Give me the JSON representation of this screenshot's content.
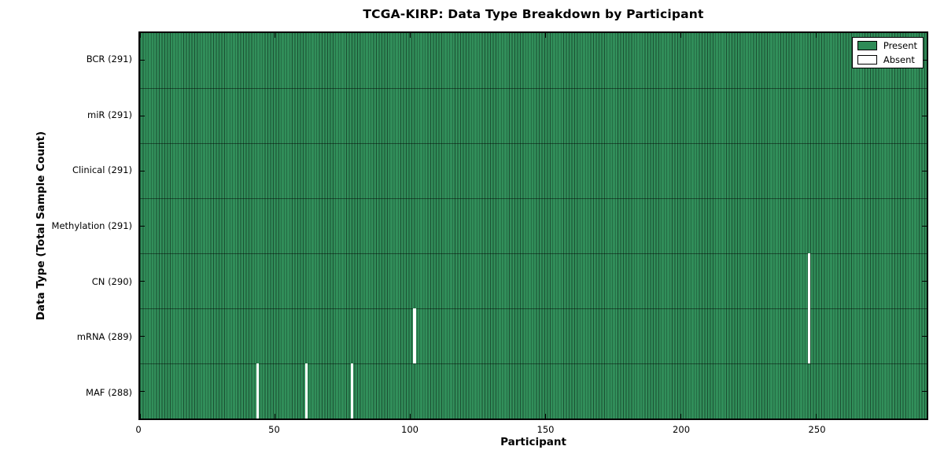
{
  "chart_data": {
    "type": "heatmap",
    "title": "TCGA-KIRP: Data Type Breakdown by Participant",
    "xlabel": "Participant",
    "ylabel": "Data Type (Total Sample Count)",
    "n_participants": 291,
    "xlim": [
      0,
      291
    ],
    "x_ticks": [
      0,
      50,
      100,
      150,
      200,
      250
    ],
    "grid": false,
    "rows": [
      {
        "label": "BCR",
        "total": 291,
        "absent_participants": []
      },
      {
        "label": "miR",
        "total": 291,
        "absent_participants": []
      },
      {
        "label": "Clinical",
        "total": 291,
        "absent_participants": []
      },
      {
        "label": "Methylation",
        "total": 291,
        "absent_participants": []
      },
      {
        "label": "CN",
        "total": 290,
        "absent_participants": [
          247
        ]
      },
      {
        "label": "mRNA",
        "total": 289,
        "absent_participants": [
          101,
          247
        ]
      },
      {
        "label": "MAF",
        "total": 288,
        "absent_participants": [
          43,
          61,
          78
        ]
      }
    ],
    "colors": {
      "present": "#2e8b57",
      "present_edge": "#1c5133",
      "absent": "#ffffff",
      "frame": "#000000"
    },
    "legend": {
      "position": "upper right",
      "entries": [
        {
          "label": "Present",
          "color": "#2e8b57"
        },
        {
          "label": "Absent",
          "color": "#ffffff"
        }
      ]
    }
  }
}
